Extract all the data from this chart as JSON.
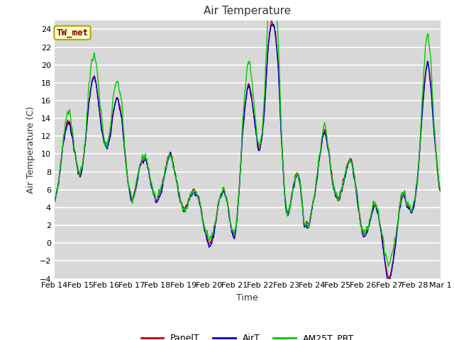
{
  "title": "Air Temperature",
  "xlabel": "Time",
  "ylabel": "Air Temperature (C)",
  "ylim": [
    -4,
    25
  ],
  "yticks": [
    -4,
    -2,
    0,
    2,
    4,
    6,
    8,
    10,
    12,
    14,
    16,
    18,
    20,
    22,
    24
  ],
  "xtick_labels": [
    "Feb 14",
    "Feb 15",
    "Feb 16",
    "Feb 17",
    "Feb 18",
    "Feb 19",
    "Feb 20",
    "Feb 21",
    "Feb 22",
    "Feb 23",
    "Feb 24",
    "Feb 25",
    "Feb 26",
    "Feb 27",
    "Feb 28",
    "Mar 1"
  ],
  "legend_labels": [
    "PanelT",
    "AirT",
    "AM25T_PRT"
  ],
  "line_colors": [
    "#cc0000",
    "#0000cc",
    "#00cc00"
  ],
  "annotation_text": "TW_met",
  "annotation_color": "#880000",
  "annotation_bg": "#ffffcc",
  "annotation_edge": "#aaaa00",
  "fig_bg": "#ffffff",
  "plot_bg": "#d8d8d8",
  "grid_color": "#ffffff",
  "title_fontsize": 11,
  "axis_fontsize": 9,
  "tick_fontsize": 8,
  "legend_fontsize": 9
}
